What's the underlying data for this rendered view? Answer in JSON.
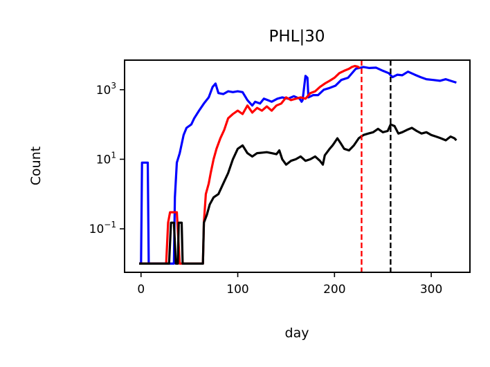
{
  "chart_data": {
    "type": "line",
    "title": "PHL|30",
    "xlabel": "day",
    "ylabel": "Count",
    "x_scale": "linear",
    "y_scale": "log",
    "xlim": [
      -17,
      340
    ],
    "ylim": [
      0.00562,
      7080
    ],
    "x_ticks": [
      0,
      100,
      200,
      300
    ],
    "x_tick_labels": [
      "0",
      "100",
      "200",
      "300"
    ],
    "y_ticks": [
      0.1,
      10,
      1000
    ],
    "y_tick_labels": [
      {
        "base": "10",
        "exp": "−1"
      },
      {
        "base": "10",
        "exp": "1"
      },
      {
        "base": "10",
        "exp": "3"
      }
    ],
    "grid": false,
    "legend": "none",
    "vlines": [
      {
        "x": 228,
        "color": "#ff0000",
        "style": "dashed"
      },
      {
        "x": 258,
        "color": "#000000",
        "style": "dashed"
      }
    ],
    "series": [
      {
        "color": "#0000ff",
        "points": [
          [
            -2,
            0.01
          ],
          [
            0,
            0.01
          ],
          [
            1,
            8
          ],
          [
            7,
            8
          ],
          [
            8,
            0.01
          ],
          [
            34,
            0.01
          ],
          [
            35,
            0.8
          ],
          [
            37,
            8
          ],
          [
            40,
            15
          ],
          [
            44,
            50
          ],
          [
            47,
            80
          ],
          [
            52,
            100
          ],
          [
            55,
            150
          ],
          [
            60,
            250
          ],
          [
            65,
            400
          ],
          [
            70,
            600
          ],
          [
            74,
            1200
          ],
          [
            77,
            1500
          ],
          [
            80,
            800
          ],
          [
            85,
            750
          ],
          [
            90,
            900
          ],
          [
            95,
            850
          ],
          [
            100,
            900
          ],
          [
            105,
            850
          ],
          [
            110,
            500
          ],
          [
            115,
            350
          ],
          [
            118,
            450
          ],
          [
            123,
            400
          ],
          [
            127,
            550
          ],
          [
            131,
            500
          ],
          [
            135,
            450
          ],
          [
            141,
            550
          ],
          [
            146,
            600
          ],
          [
            152,
            550
          ],
          [
            158,
            650
          ],
          [
            164,
            550
          ],
          [
            166,
            450
          ],
          [
            167,
            500
          ],
          [
            170,
            2500
          ],
          [
            172,
            2200
          ],
          [
            173,
            600
          ],
          [
            178,
            700
          ],
          [
            183,
            700
          ],
          [
            189,
            1000
          ],
          [
            194,
            1100
          ],
          [
            201,
            1300
          ],
          [
            207,
            1900
          ],
          [
            214,
            2200
          ],
          [
            222,
            4000
          ],
          [
            230,
            4500
          ],
          [
            236,
            4200
          ],
          [
            243,
            4300
          ],
          [
            250,
            3500
          ],
          [
            256,
            3000
          ],
          [
            260,
            2300
          ],
          [
            265,
            2700
          ],
          [
            270,
            2600
          ],
          [
            276,
            3300
          ],
          [
            283,
            2700
          ],
          [
            289,
            2300
          ],
          [
            295,
            2000
          ],
          [
            302,
            1900
          ],
          [
            309,
            1800
          ],
          [
            315,
            2000
          ],
          [
            320,
            1800
          ],
          [
            326,
            1600
          ]
        ]
      },
      {
        "color": "#ff0000",
        "points": [
          [
            -2,
            0.01
          ],
          [
            26,
            0.01
          ],
          [
            28,
            0.15
          ],
          [
            30,
            0.3
          ],
          [
            34,
            0.3
          ],
          [
            37,
            0.3
          ],
          [
            40,
            0.01
          ],
          [
            64,
            0.01
          ],
          [
            65,
            0.15
          ],
          [
            67,
            1
          ],
          [
            70,
            2
          ],
          [
            72,
            4
          ],
          [
            75,
            10
          ],
          [
            78,
            20
          ],
          [
            82,
            40
          ],
          [
            86,
            70
          ],
          [
            90,
            150
          ],
          [
            95,
            200
          ],
          [
            100,
            250
          ],
          [
            105,
            200
          ],
          [
            110,
            350
          ],
          [
            115,
            220
          ],
          [
            120,
            300
          ],
          [
            125,
            250
          ],
          [
            130,
            330
          ],
          [
            135,
            250
          ],
          [
            140,
            350
          ],
          [
            145,
            400
          ],
          [
            150,
            600
          ],
          [
            155,
            500
          ],
          [
            160,
            550
          ],
          [
            165,
            600
          ],
          [
            170,
            550
          ],
          [
            175,
            800
          ],
          [
            180,
            900
          ],
          [
            185,
            1200
          ],
          [
            190,
            1500
          ],
          [
            195,
            1800
          ],
          [
            200,
            2200
          ],
          [
            205,
            3000
          ],
          [
            210,
            3500
          ],
          [
            215,
            4000
          ],
          [
            218,
            4500
          ],
          [
            221,
            4800
          ],
          [
            224,
            4600
          ],
          [
            226,
            4200
          ]
        ]
      },
      {
        "color": "#000000",
        "points": [
          [
            -2,
            0.01
          ],
          [
            29,
            0.01
          ],
          [
            31,
            0.15
          ],
          [
            34,
            0.15
          ],
          [
            36,
            0.01
          ],
          [
            38,
            0.01
          ],
          [
            39,
            0.15
          ],
          [
            42,
            0.15
          ],
          [
            43,
            0.01
          ],
          [
            64,
            0.01
          ],
          [
            65,
            0.15
          ],
          [
            68,
            0.25
          ],
          [
            71,
            0.5
          ],
          [
            75,
            0.8
          ],
          [
            80,
            1
          ],
          [
            85,
            2
          ],
          [
            90,
            4
          ],
          [
            95,
            10
          ],
          [
            100,
            20
          ],
          [
            105,
            25
          ],
          [
            110,
            15
          ],
          [
            115,
            12
          ],
          [
            120,
            15
          ],
          [
            130,
            16
          ],
          [
            135,
            15
          ],
          [
            140,
            14
          ],
          [
            143,
            18
          ],
          [
            146,
            10
          ],
          [
            150,
            7
          ],
          [
            155,
            9
          ],
          [
            160,
            10
          ],
          [
            165,
            12
          ],
          [
            170,
            9
          ],
          [
            175,
            10
          ],
          [
            180,
            12
          ],
          [
            185,
            9
          ],
          [
            188,
            7
          ],
          [
            190,
            13
          ],
          [
            195,
            20
          ],
          [
            198,
            25
          ],
          [
            200,
            30
          ],
          [
            203,
            40
          ],
          [
            206,
            30
          ],
          [
            210,
            20
          ],
          [
            215,
            18
          ],
          [
            220,
            25
          ],
          [
            225,
            40
          ],
          [
            230,
            50
          ],
          [
            235,
            55
          ],
          [
            240,
            60
          ],
          [
            245,
            75
          ],
          [
            250,
            60
          ],
          [
            255,
            65
          ],
          [
            258,
            100
          ],
          [
            262,
            90
          ],
          [
            266,
            55
          ],
          [
            270,
            60
          ],
          [
            275,
            70
          ],
          [
            280,
            80
          ],
          [
            285,
            65
          ],
          [
            290,
            55
          ],
          [
            295,
            60
          ],
          [
            300,
            50
          ],
          [
            305,
            45
          ],
          [
            310,
            40
          ],
          [
            315,
            35
          ],
          [
            320,
            45
          ],
          [
            324,
            40
          ],
          [
            326,
            35
          ]
        ]
      }
    ]
  }
}
